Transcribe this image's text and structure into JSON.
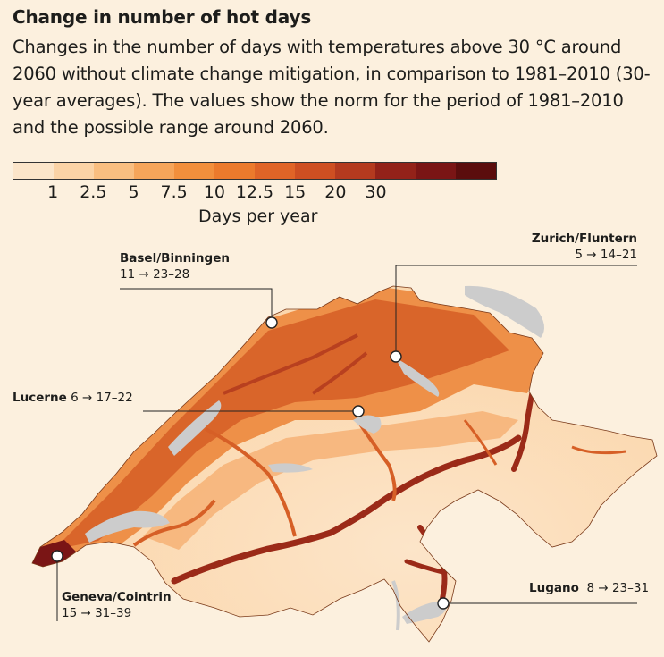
{
  "title": "Change in number of hot days",
  "subtitle": "Changes in the number of days with temperatures above 30 °C around 2060 without climate change mitigation, in comparison to 1981–2010 (30-year averages). The values show the norm for the period of 1981–2010 and the possible range around 2060.",
  "legend": {
    "colors": [
      "#fce5c9",
      "#fbd3a6",
      "#f9be80",
      "#f6a55a",
      "#f28f3c",
      "#ec7a2c",
      "#e06427",
      "#ce4f22",
      "#b43a1f",
      "#932219",
      "#7a1515",
      "#5b0d0d"
    ],
    "ticks": [
      "1",
      "2.5",
      "5",
      "7.5",
      "10",
      "12.5",
      "15",
      "20",
      "30"
    ],
    "unit_label": "Days per year"
  },
  "stations": [
    {
      "name": "Basel/Binningen",
      "norm_days": 11,
      "range_2060": "23–28",
      "value_text": "11 → 23–28"
    },
    {
      "name": "Zurich/Fluntern",
      "norm_days": 5,
      "range_2060": "14–21",
      "value_text": "5 → 14–21"
    },
    {
      "name": "Lucerne",
      "norm_days": 6,
      "range_2060": "17–22",
      "value_text": "6 → 17–22"
    },
    {
      "name": "Geneva/Cointrin",
      "norm_days": 15,
      "range_2060": "31–39",
      "value_text": "15 → 31–39"
    },
    {
      "name": "Lugano",
      "norm_days": 8,
      "range_2060": "23–31",
      "value_text": "8 → 23–31"
    }
  ],
  "map_colors": {
    "plateau": "#d9652a",
    "mid": "#ee9048",
    "hills": "#f6b275",
    "alps": "#fbdcb8",
    "valley": "#9b2a18",
    "lake": "#cccccc",
    "neighbour": "#fcf0de"
  }
}
